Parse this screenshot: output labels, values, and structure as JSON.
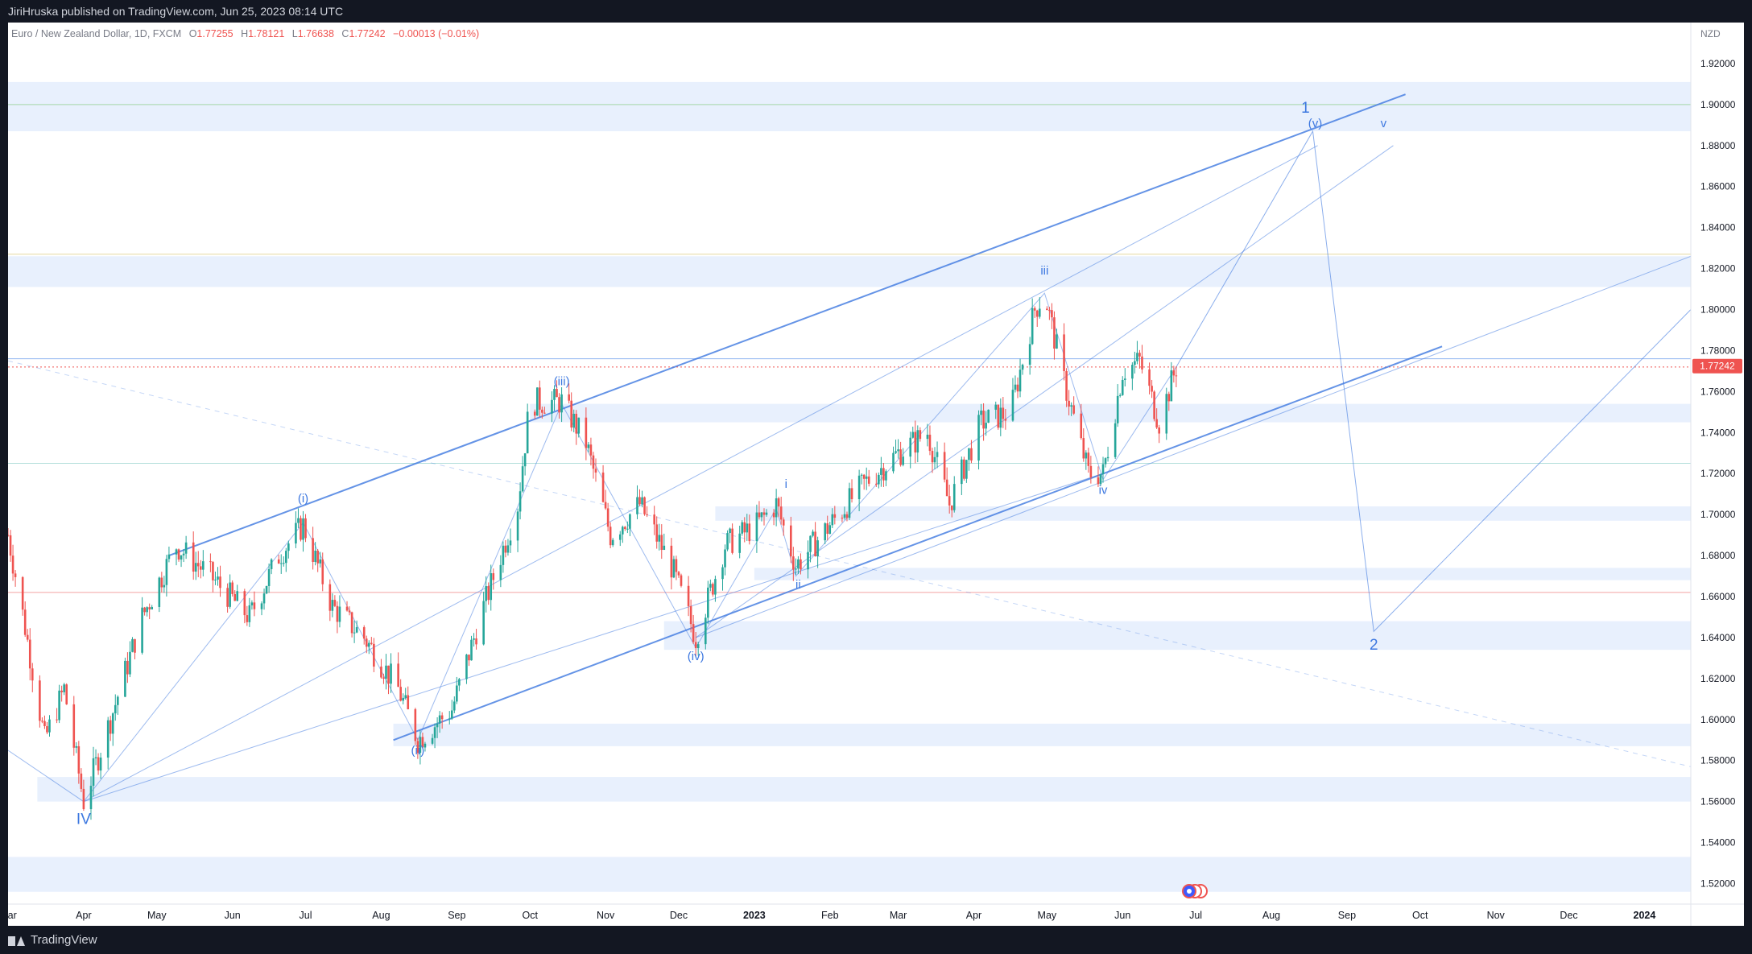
{
  "header": {
    "published": "JiriHruska published on TradingView.com, Jun 25, 2023 08:14 UTC"
  },
  "footer": {
    "brand": "TradingView"
  },
  "colors": {
    "up": "#26a69a",
    "down": "#ef5350",
    "wave": "#3d78e0",
    "zone": "#e8f0fd",
    "price_tag": "#ef5350"
  },
  "chart_data": {
    "type": "candlestick",
    "symbol_title": "Euro / New Zealand Dollar, 1D, FXCM",
    "ohlc": {
      "o_label": "O",
      "o": "1.77255",
      "h_label": "H",
      "h": "1.78121",
      "l_label": "L",
      "l": "1.76638",
      "c_label": "C",
      "c": "1.77242",
      "change": "−0.00013 (−0.01%)"
    },
    "currency": "NZD",
    "last_price": 1.77242,
    "last_price_label": "1.77242",
    "x_range": [
      "2022-03-01",
      "2024-01-20"
    ],
    "ylim": [
      1.51,
      1.94
    ],
    "y_ticks": [
      "1.52000",
      "1.54000",
      "1.56000",
      "1.58000",
      "1.60000",
      "1.62000",
      "1.64000",
      "1.66000",
      "1.68000",
      "1.70000",
      "1.72000",
      "1.74000",
      "1.76000",
      "1.78000",
      "1.80000",
      "1.82000",
      "1.84000",
      "1.86000",
      "1.88000",
      "1.90000",
      "1.92000"
    ],
    "x_ticks": [
      {
        "label": "Mar",
        "date": "2022-03-01"
      },
      {
        "label": "Apr",
        "date": "2022-04-01"
      },
      {
        "label": "May",
        "date": "2022-05-01"
      },
      {
        "label": "Jun",
        "date": "2022-06-01"
      },
      {
        "label": "Jul",
        "date": "2022-07-01"
      },
      {
        "label": "Aug",
        "date": "2022-08-01"
      },
      {
        "label": "Sep",
        "date": "2022-09-01"
      },
      {
        "label": "Oct",
        "date": "2022-10-01"
      },
      {
        "label": "Nov",
        "date": "2022-11-01"
      },
      {
        "label": "Dec",
        "date": "2022-12-01"
      },
      {
        "label": "2023",
        "date": "2023-01-01"
      },
      {
        "label": "Feb",
        "date": "2023-02-01"
      },
      {
        "label": "Mar",
        "date": "2023-03-01"
      },
      {
        "label": "Apr",
        "date": "2023-04-01"
      },
      {
        "label": "May",
        "date": "2023-05-01"
      },
      {
        "label": "Jun",
        "date": "2023-06-01"
      },
      {
        "label": "Jul",
        "date": "2023-07-01"
      },
      {
        "label": "Aug",
        "date": "2023-08-01"
      },
      {
        "label": "Sep",
        "date": "2023-09-01"
      },
      {
        "label": "Oct",
        "date": "2023-10-01"
      },
      {
        "label": "Nov",
        "date": "2023-11-01"
      },
      {
        "label": "Dec",
        "date": "2023-12-01"
      },
      {
        "label": "2024",
        "date": "2024-01-01"
      }
    ],
    "price_path": [
      [
        "2022-03-01",
        1.69
      ],
      [
        "2022-03-08",
        1.645
      ],
      [
        "2022-03-16",
        1.59
      ],
      [
        "2022-03-24",
        1.615
      ],
      [
        "2022-04-01",
        1.56
      ],
      [
        "2022-04-12",
        1.6
      ],
      [
        "2022-04-25",
        1.65
      ],
      [
        "2022-05-09",
        1.685
      ],
      [
        "2022-05-23",
        1.67
      ],
      [
        "2022-06-08",
        1.65
      ],
      [
        "2022-06-20",
        1.68
      ],
      [
        "2022-06-30",
        1.695
      ],
      [
        "2022-07-12",
        1.655
      ],
      [
        "2022-07-25",
        1.64
      ],
      [
        "2022-08-08",
        1.615
      ],
      [
        "2022-08-16",
        1.59
      ],
      [
        "2022-08-30",
        1.605
      ],
      [
        "2022-09-12",
        1.655
      ],
      [
        "2022-09-26",
        1.705
      ],
      [
        "2022-10-01",
        1.755
      ],
      [
        "2022-10-14",
        1.755
      ],
      [
        "2022-10-24",
        1.735
      ],
      [
        "2022-11-03",
        1.69
      ],
      [
        "2022-11-15",
        1.705
      ],
      [
        "2022-11-28",
        1.675
      ],
      [
        "2022-12-08",
        1.64
      ],
      [
        "2022-12-20",
        1.685
      ],
      [
        "2023-01-02",
        1.695
      ],
      [
        "2023-01-10",
        1.705
      ],
      [
        "2023-01-18",
        1.675
      ],
      [
        "2023-02-01",
        1.695
      ],
      [
        "2023-02-15",
        1.715
      ],
      [
        "2023-03-01",
        1.73
      ],
      [
        "2023-03-13",
        1.74
      ],
      [
        "2023-03-22",
        1.705
      ],
      [
        "2023-04-04",
        1.745
      ],
      [
        "2023-04-16",
        1.75
      ],
      [
        "2023-04-26",
        1.8
      ],
      [
        "2023-04-30",
        1.808
      ],
      [
        "2023-05-08",
        1.765
      ],
      [
        "2023-05-18",
        1.72
      ],
      [
        "2023-05-24",
        1.72
      ],
      [
        "2023-06-01",
        1.77
      ],
      [
        "2023-06-08",
        1.775
      ],
      [
        "2023-06-16",
        1.745
      ],
      [
        "2023-06-23",
        1.772
      ]
    ],
    "zones": [
      {
        "from": 1.887,
        "to": 1.911,
        "start": "2022-03-01"
      },
      {
        "from": 1.811,
        "to": 1.826,
        "start": "2022-03-01"
      },
      {
        "from": 1.745,
        "to": 1.754,
        "start": "2022-10-01"
      },
      {
        "from": 1.697,
        "to": 1.704,
        "start": "2022-12-16"
      },
      {
        "from": 1.668,
        "to": 1.674,
        "start": "2023-01-01"
      },
      {
        "from": 1.634,
        "to": 1.648,
        "start": "2022-11-25"
      },
      {
        "from": 1.587,
        "to": 1.598,
        "start": "2022-08-06"
      },
      {
        "from": 1.56,
        "to": 1.572,
        "start": "2022-03-13"
      },
      {
        "from": 1.516,
        "to": 1.533,
        "start": "2022-03-01"
      }
    ],
    "h_lines": [
      {
        "y": 1.9,
        "color": "#a5d6a7"
      },
      {
        "y": 1.827,
        "color": "#e6d9a0"
      },
      {
        "y": 1.776,
        "color": "#90b4f0"
      },
      {
        "y": 1.725,
        "color": "#b2dfdb"
      },
      {
        "y": 1.662,
        "color": "#f4a3a3"
      },
      {
        "y": 1.772,
        "color": "#ef5350",
        "dotted": true
      }
    ],
    "wave_labels": [
      {
        "text": "IV",
        "date": "2022-04-01",
        "y": 1.549,
        "big": true
      },
      {
        "text": "(i)",
        "date": "2022-06-30",
        "y": 1.706
      },
      {
        "text": "(ii)",
        "date": "2022-08-16",
        "y": 1.583
      },
      {
        "text": "(iii)",
        "date": "2022-10-14",
        "y": 1.763
      },
      {
        "text": "(iv)",
        "date": "2022-12-08",
        "y": 1.629
      },
      {
        "text": "i",
        "date": "2023-01-14",
        "y": 1.713
      },
      {
        "text": "ii",
        "date": "2023-01-19",
        "y": 1.664
      },
      {
        "text": "iii",
        "date": "2023-04-30",
        "y": 1.817
      },
      {
        "text": "iv",
        "date": "2023-05-24",
        "y": 1.71
      },
      {
        "text": "1",
        "date": "2023-08-15",
        "y": 1.896,
        "big": true
      },
      {
        "text": "(v)",
        "date": "2023-08-19",
        "y": 1.889
      },
      {
        "text": "v",
        "date": "2023-09-16",
        "y": 1.889
      },
      {
        "text": "2",
        "date": "2023-09-12",
        "y": 1.634,
        "big": true
      }
    ]
  }
}
